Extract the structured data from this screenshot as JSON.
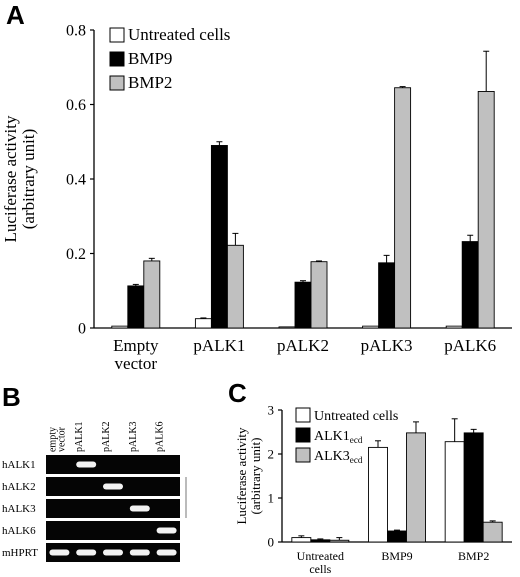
{
  "panels": {
    "A": {
      "letter": "A"
    },
    "B": {
      "letter": "B"
    },
    "C": {
      "letter": "C"
    }
  },
  "chart_data": [
    {
      "panel": "A",
      "type": "bar",
      "ylabel": "Luciferase activity",
      "ylabel2": "(arbitrary unit)",
      "ylim": [
        0,
        0.8
      ],
      "yticks": [
        0,
        0.2,
        0.4,
        0.6,
        0.8
      ],
      "ytick_labels": [
        "0",
        "0.2",
        "0.4",
        "0.6",
        "0.8"
      ],
      "categories": [
        "Empty\nvector",
        "pALK1",
        "pALK2",
        "pALK3",
        "pALK6"
      ],
      "legend_position": "top-left",
      "series": [
        {
          "name": "Untreated cells",
          "color": "#ffffff",
          "values": [
            0.005,
            0.025,
            0.003,
            0.005,
            0.005
          ],
          "errors": [
            0.0,
            0.002,
            0.0,
            0.0,
            0.0
          ]
        },
        {
          "name": "BMP9",
          "color": "#000000",
          "values": [
            0.113,
            0.49,
            0.123,
            0.175,
            0.232
          ],
          "errors": [
            0.004,
            0.01,
            0.004,
            0.02,
            0.017
          ]
        },
        {
          "name": "BMP2",
          "color": "#c0c0c0",
          "values": [
            0.18,
            0.222,
            0.178,
            0.645,
            0.635
          ],
          "errors": [
            0.007,
            0.032,
            0.002,
            0.003,
            0.108
          ]
        }
      ]
    },
    {
      "panel": "C",
      "type": "bar",
      "ylabel": "Luciferase activity",
      "ylabel2": "(arbitrary unit)",
      "ylim": [
        0,
        3
      ],
      "yticks": [
        0,
        1,
        2,
        3
      ],
      "ytick_labels": [
        "0",
        "1",
        "2",
        "3"
      ],
      "categories": [
        "Untreated\ncells",
        "BMP9",
        "BMP2"
      ],
      "legend_position": "top-left",
      "series": [
        {
          "name": "Untreated cells",
          "name_sub": "",
          "color": "#ffffff",
          "values": [
            0.1,
            2.15,
            2.28
          ],
          "errors": [
            0.04,
            0.15,
            0.52
          ]
        },
        {
          "name": "ALK1",
          "name_sub": "ecd",
          "color": "#000000",
          "values": [
            0.05,
            0.25,
            2.48
          ],
          "errors": [
            0.02,
            0.02,
            0.08
          ]
        },
        {
          "name": "ALK3",
          "name_sub": "ecd",
          "color": "#c0c0c0",
          "values": [
            0.04,
            2.48,
            0.45
          ],
          "errors": [
            0.06,
            0.25,
            0.03
          ]
        }
      ]
    }
  ],
  "gel": {
    "lanes": [
      "empty\nvector",
      "pALK1",
      "pALK2",
      "pALK3",
      "pALK6"
    ],
    "rows": [
      {
        "label": "hALK1",
        "bands": [
          0,
          1,
          0,
          0,
          0
        ]
      },
      {
        "label": "hALK2",
        "bands": [
          0,
          0,
          1,
          0,
          0
        ]
      },
      {
        "label": "hALK3",
        "bands": [
          0,
          0,
          0,
          1,
          0
        ]
      },
      {
        "label": "hALK6",
        "bands": [
          0,
          0,
          0,
          0,
          1
        ]
      },
      {
        "label": "mHPRT",
        "bands": [
          1,
          1,
          1,
          1,
          1
        ]
      }
    ]
  }
}
